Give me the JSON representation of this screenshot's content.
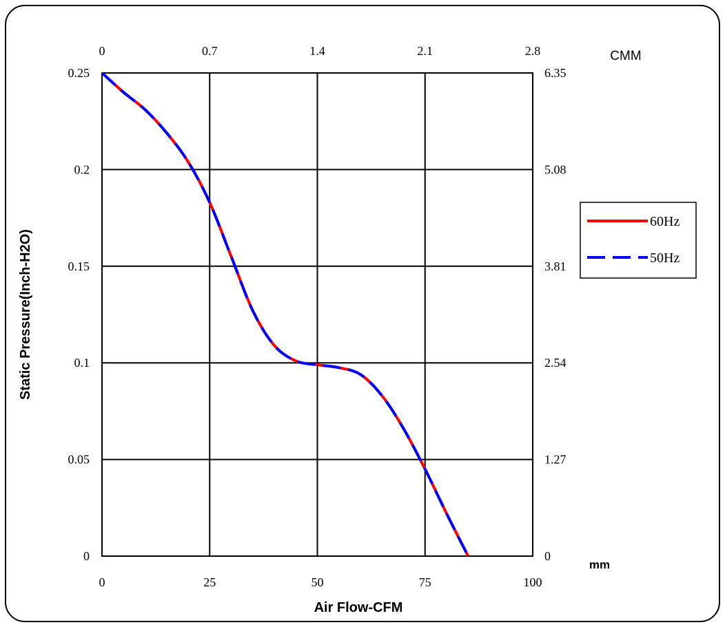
{
  "chart_data": {
    "type": "line",
    "xlabel": "Air Flow-CFM",
    "ylabel": "Static Pressure(Inch-H2O)",
    "x_unit_label": "mm",
    "top_axis_unit_label": "CMM",
    "xlim": [
      0,
      100
    ],
    "ylim": [
      0,
      0.25
    ],
    "x_ticks": [
      "0",
      "25",
      "50",
      "75",
      "100"
    ],
    "y_ticks": [
      "0",
      "0.05",
      "0.1",
      "0.15",
      "0.2",
      "0.25"
    ],
    "top_x_ticks": [
      "0",
      "0.7",
      "1.4",
      "2.1",
      "2.8"
    ],
    "right_y_ticks": [
      "0",
      "1.27",
      "2.54",
      "3.81",
      "5.08",
      "6.35"
    ],
    "grid": true,
    "legend_position": "right",
    "series": [
      {
        "name": "60Hz",
        "color": "#ff0000",
        "style": "solid",
        "x": [
          0,
          5,
          10,
          15,
          20,
          25,
          30,
          35,
          40,
          45,
          50,
          55,
          60,
          65,
          70,
          75,
          80,
          85
        ],
        "y": [
          0.25,
          0.24,
          0.231,
          0.219,
          0.204,
          0.183,
          0.155,
          0.127,
          0.109,
          0.101,
          0.099,
          0.0975,
          0.094,
          0.083,
          0.066,
          0.045,
          0.022,
          0.0
        ]
      },
      {
        "name": "50Hz",
        "color": "#0000ff",
        "style": "dashed",
        "x": [
          0,
          5,
          10,
          15,
          20,
          25,
          30,
          35,
          40,
          45,
          50,
          55,
          60,
          65,
          70,
          75,
          80,
          85
        ],
        "y": [
          0.25,
          0.24,
          0.231,
          0.219,
          0.204,
          0.183,
          0.155,
          0.127,
          0.109,
          0.101,
          0.099,
          0.0975,
          0.094,
          0.083,
          0.066,
          0.045,
          0.022,
          0.0
        ]
      }
    ]
  }
}
